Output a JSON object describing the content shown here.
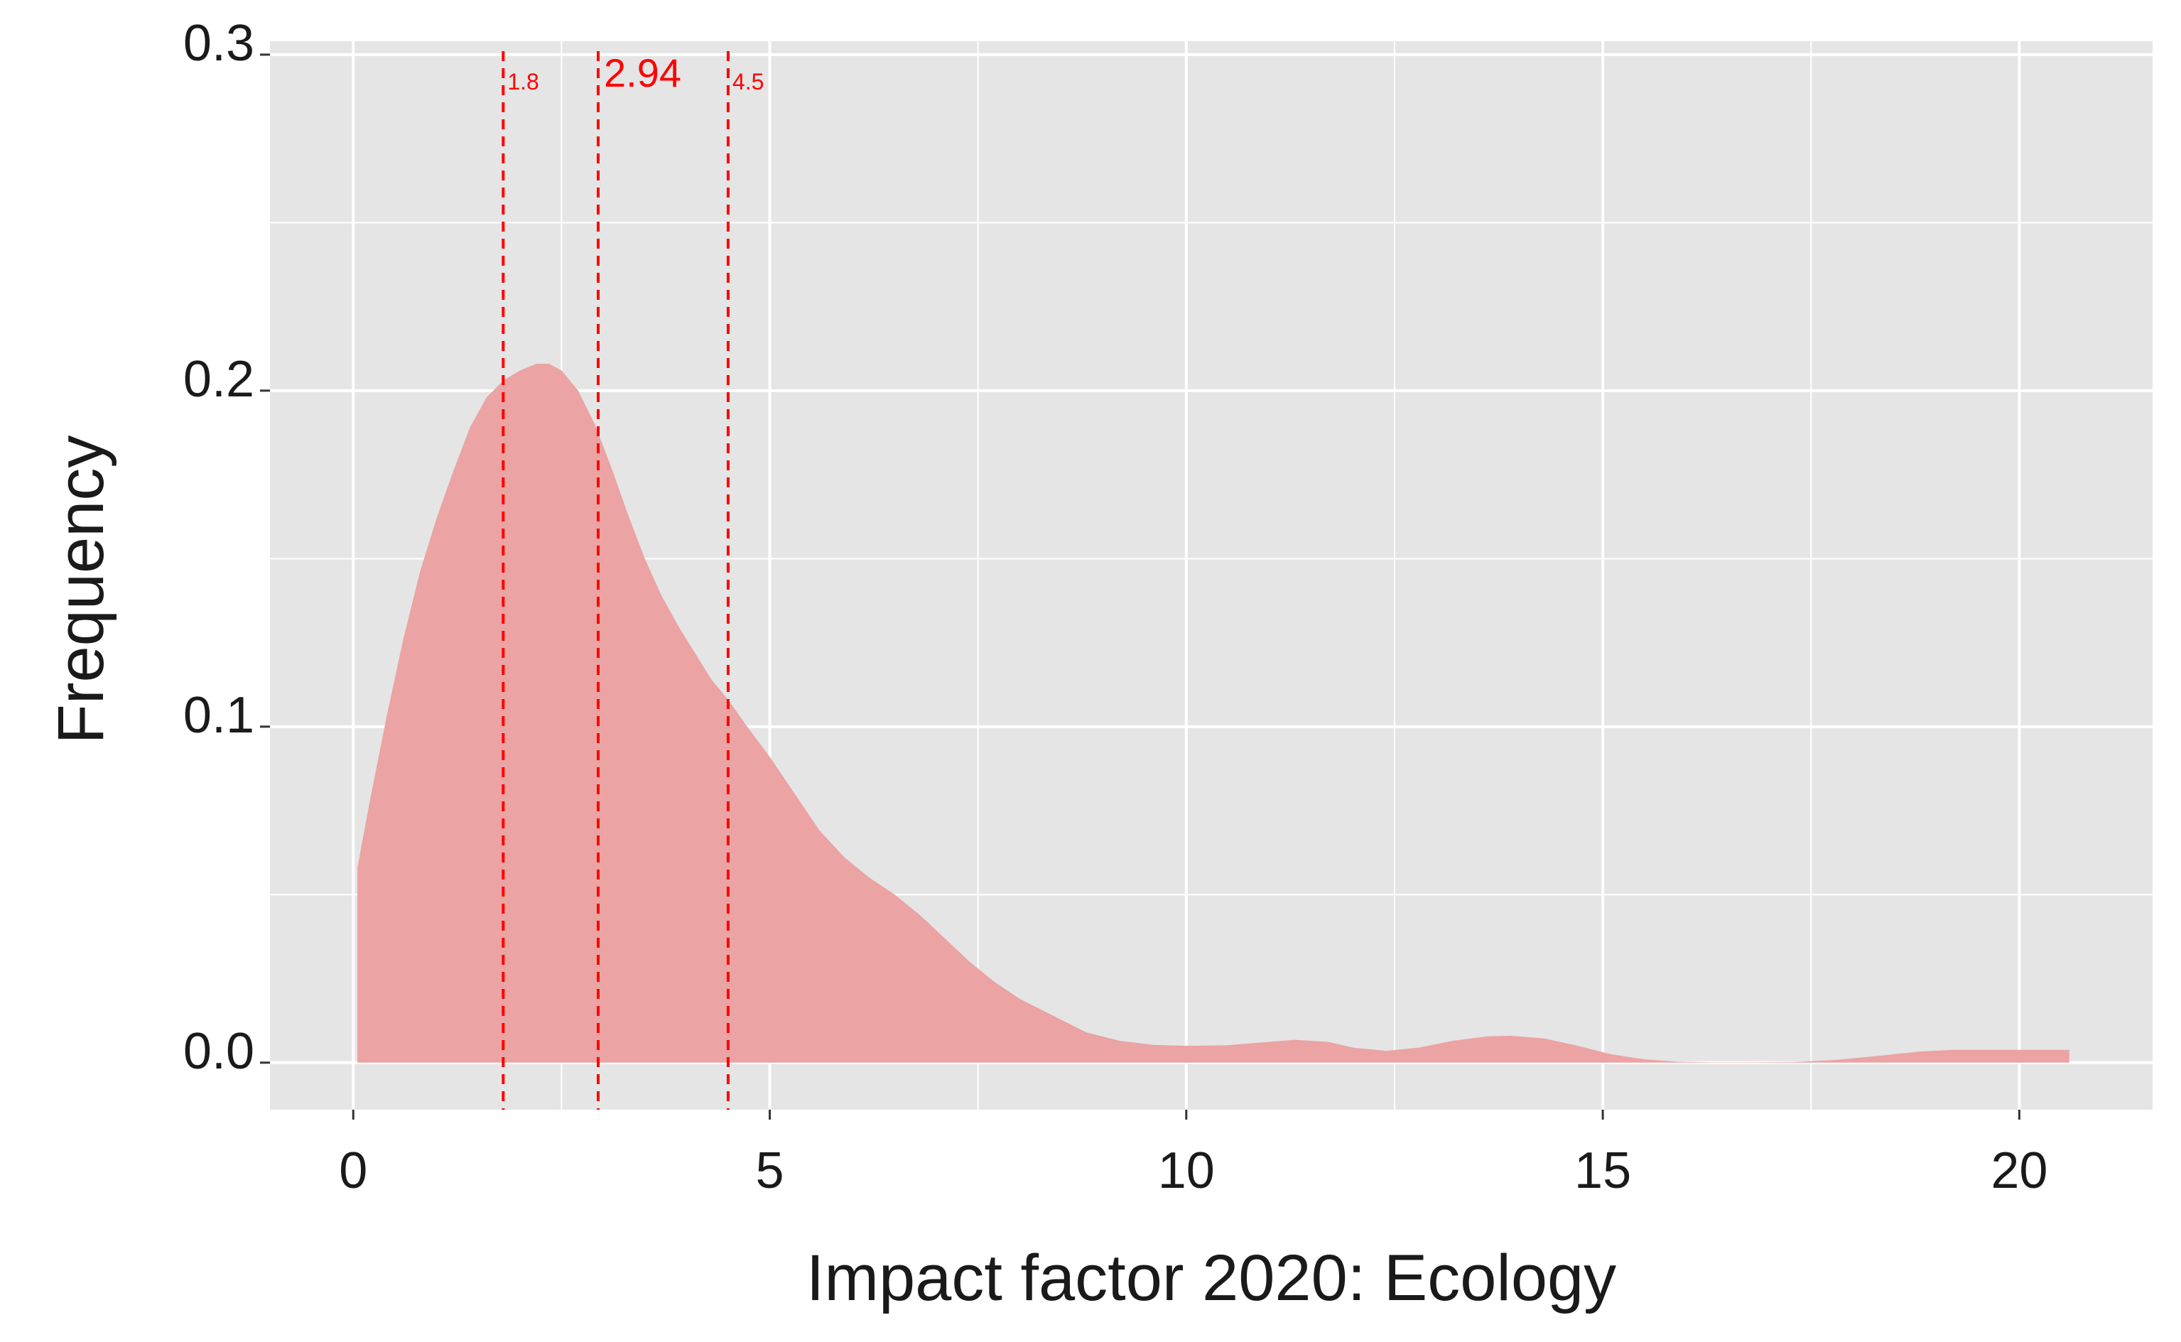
{
  "chart_data": {
    "type": "area",
    "xlabel": "Impact factor 2020: Ecology",
    "ylabel": "Frequency",
    "xlim": [
      -1,
      21.6
    ],
    "ylim": [
      -0.014,
      0.304
    ],
    "x_ticks": [
      0,
      5,
      10,
      15,
      20
    ],
    "x_tick_labels": [
      "0",
      "5",
      "10",
      "15",
      "20"
    ],
    "y_ticks": [
      0.0,
      0.1,
      0.2,
      0.3
    ],
    "y_tick_labels": [
      "0.0",
      "0.1",
      "0.2",
      "0.3"
    ],
    "grid": true,
    "legend": "none",
    "fill_color": "#eba3a3",
    "background_color": "#e5e5e5",
    "grid_color": "#ffffff",
    "reference_line_color": "#ff0000",
    "series": [
      {
        "x": [
          0.05,
          0.2,
          0.4,
          0.6,
          0.8,
          1.0,
          1.2,
          1.4,
          1.6,
          1.8,
          2.0,
          2.2,
          2.35,
          2.5,
          2.7,
          2.9,
          3.1,
          3.3,
          3.5,
          3.7,
          3.9,
          4.1,
          4.3,
          4.5,
          4.7,
          5.0,
          5.3,
          5.6,
          5.9,
          6.2,
          6.5,
          6.8,
          7.1,
          7.4,
          7.7,
          8.0,
          8.4,
          8.8,
          9.2,
          9.6,
          10.0,
          10.5,
          11.0,
          11.3,
          11.7,
          12.0,
          12.4,
          12.8,
          13.2,
          13.6,
          13.9,
          14.3,
          14.7,
          15.1,
          15.5,
          15.9,
          16.3,
          16.8,
          17.3,
          17.8,
          18.3,
          18.8,
          19.2,
          19.6,
          20.0,
          20.6
        ],
        "y": [
          0.058,
          0.078,
          0.103,
          0.126,
          0.146,
          0.162,
          0.176,
          0.189,
          0.198,
          0.203,
          0.206,
          0.208,
          0.208,
          0.206,
          0.2,
          0.19,
          0.177,
          0.163,
          0.15,
          0.139,
          0.13,
          0.122,
          0.114,
          0.108,
          0.101,
          0.091,
          0.08,
          0.069,
          0.061,
          0.055,
          0.05,
          0.044,
          0.037,
          0.03,
          0.024,
          0.019,
          0.014,
          0.009,
          0.0065,
          0.0053,
          0.005,
          0.0052,
          0.0062,
          0.0068,
          0.0062,
          0.0045,
          0.0035,
          0.0045,
          0.0065,
          0.0078,
          0.008,
          0.0072,
          0.005,
          0.0025,
          0.001,
          0.0003,
          0.0001,
          0.0001,
          0.0002,
          0.0008,
          0.002,
          0.0033,
          0.0038,
          0.0038,
          0.0038,
          0.0038
        ]
      }
    ],
    "reference_lines": [
      {
        "x": 1.8,
        "label": "1.8",
        "style": "dashed",
        "label_size": "small"
      },
      {
        "x": 2.94,
        "label": "2.94",
        "style": "dashed",
        "label_size": "large"
      },
      {
        "x": 4.5,
        "label": "4.5",
        "style": "dashed",
        "label_size": "small"
      }
    ]
  }
}
